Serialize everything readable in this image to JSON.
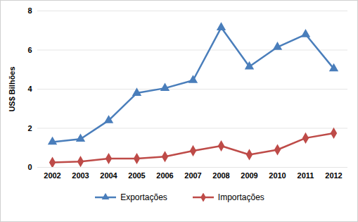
{
  "chart_data": {
    "type": "line",
    "y_label": "US$ Bilhões",
    "categories": [
      "2002",
      "2003",
      "2004",
      "2005",
      "2006",
      "2007",
      "2008",
      "2009",
      "2010",
      "2011",
      "2012"
    ],
    "series": [
      {
        "name": "Exportações",
        "color": "#4a7ebb",
        "marker": "triangle",
        "values": [
          1.3,
          1.45,
          2.4,
          3.8,
          4.05,
          4.45,
          7.15,
          5.15,
          6.15,
          6.8,
          5.05
        ]
      },
      {
        "name": "Importações",
        "color": "#be4b48",
        "marker": "diamond",
        "values": [
          0.25,
          0.3,
          0.45,
          0.45,
          0.55,
          0.85,
          1.1,
          0.65,
          0.9,
          1.5,
          1.75
        ]
      }
    ],
    "ylim": [
      0,
      8
    ],
    "yticks": [
      0,
      2,
      4,
      6,
      8
    ],
    "grid": true,
    "legend": "bottom"
  }
}
